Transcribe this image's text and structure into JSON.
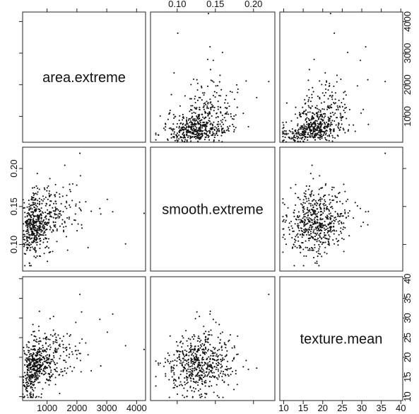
{
  "chart_data": {
    "type": "scatter",
    "variables": [
      {
        "name": "area.extreme",
        "range": [
          180,
          4300
        ],
        "ticks": [
          1000,
          2000,
          3000,
          4000
        ]
      },
      {
        "name": "smooth.extreme",
        "range": [
          0.065,
          0.228
        ],
        "ticks": [
          0.1,
          0.15,
          0.2
        ]
      },
      {
        "name": "texture.mean",
        "range": [
          9,
          40.5
        ],
        "ticks": [
          10,
          15,
          20,
          25,
          30,
          35,
          40
        ]
      }
    ],
    "tick_labels": {
      "area.extreme": [
        "1000",
        "2000",
        "3000",
        "4000"
      ],
      "smooth.extreme": [
        "0.10",
        "0.15",
        "0.20"
      ],
      "texture.mean": [
        "10",
        "15",
        "20",
        "25",
        "30",
        "35",
        "40"
      ]
    },
    "axis_label_placement": {
      "top": "smooth.extreme",
      "right_row1": "area.extreme",
      "left_row2": "smooth.extreme",
      "right_row3": "texture.mean",
      "bottom_col1": "area.extreme",
      "bottom_col3": "texture.mean"
    },
    "n_points": 569,
    "points": [
      {
        "area": 1400,
        "smooth": 0.135,
        "texture": 23
      },
      {
        "area": 2800,
        "smooth": 0.14,
        "texture": 17.8
      },
      {
        "area": 3200,
        "smooth": 0.143,
        "texture": 31
      },
      {
        "area": 4250,
        "smooth": 0.141,
        "texture": 22
      },
      {
        "area": 2100,
        "smooth": 0.22,
        "texture": 36
      }
    ]
  }
}
